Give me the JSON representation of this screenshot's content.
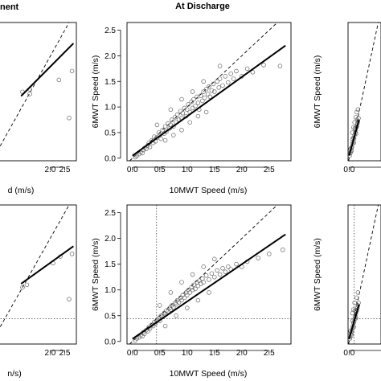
{
  "figure": {
    "titles": {
      "left": "nent",
      "center": "At Discharge"
    }
  },
  "chart_data": [
    {
      "id": "top-left",
      "type": "scatter",
      "xlabel": "d (m/s)",
      "ylabel": "",
      "xlim": [
        0,
        2.9
      ],
      "ylim": [
        0,
        2.65
      ],
      "xticks": [
        "2.0",
        "2.5"
      ],
      "yticks": [],
      "identity_line": true,
      "fit_line": [
        [
          1.0,
          1.24
        ],
        [
          2.8,
          2.25
        ]
      ],
      "points": [
        [
          1.05,
          1.32
        ],
        [
          1.3,
          1.28
        ],
        [
          1.3,
          1.37
        ],
        [
          2.3,
          1.55
        ],
        [
          2.65,
          0.82
        ],
        [
          2.75,
          1.72
        ]
      ]
    },
    {
      "id": "top-center",
      "type": "scatter",
      "title": "At Discharge",
      "xlabel": "10MWT Speed (m/s)",
      "ylabel": "6MWT Speed (m/s)",
      "xlim": [
        -0.1,
        2.9
      ],
      "ylim": [
        -0.05,
        2.65
      ],
      "xticks": [
        "0.0",
        "0.5",
        "1.0",
        "1.5",
        "2.0",
        "2.5"
      ],
      "yticks": [
        "0.0",
        "0.5",
        "1.0",
        "1.5",
        "2.0",
        "2.5"
      ],
      "identity_line": true,
      "fit_line": [
        [
          0.0,
          0.05
        ],
        [
          2.8,
          2.2
        ]
      ],
      "points": [
        [
          0.05,
          0.02
        ],
        [
          0.08,
          0.05
        ],
        [
          0.12,
          0.08
        ],
        [
          0.15,
          0.12
        ],
        [
          0.18,
          0.1
        ],
        [
          0.2,
          0.16
        ],
        [
          0.22,
          0.2
        ],
        [
          0.25,
          0.18
        ],
        [
          0.28,
          0.25
        ],
        [
          0.3,
          0.3
        ],
        [
          0.32,
          0.22
        ],
        [
          0.35,
          0.35
        ],
        [
          0.38,
          0.3
        ],
        [
          0.4,
          0.42
        ],
        [
          0.42,
          0.33
        ],
        [
          0.45,
          0.4
        ],
        [
          0.48,
          0.5
        ],
        [
          0.5,
          0.45
        ],
        [
          0.52,
          0.38
        ],
        [
          0.55,
          0.55
        ],
        [
          0.58,
          0.48
        ],
        [
          0.6,
          0.62
        ],
        [
          0.62,
          0.52
        ],
        [
          0.65,
          0.68
        ],
        [
          0.68,
          0.58
        ],
        [
          0.7,
          0.65
        ],
        [
          0.72,
          0.75
        ],
        [
          0.75,
          0.62
        ],
        [
          0.78,
          0.8
        ],
        [
          0.8,
          0.7
        ],
        [
          0.82,
          0.85
        ],
        [
          0.85,
          0.75
        ],
        [
          0.88,
          0.92
        ],
        [
          0.9,
          0.78
        ],
        [
          0.92,
          0.88
        ],
        [
          0.95,
          0.98
        ],
        [
          0.98,
          0.82
        ],
        [
          1.0,
          0.95
        ],
        [
          1.02,
          1.05
        ],
        [
          1.05,
          0.9
        ],
        [
          1.08,
          1.1
        ],
        [
          1.1,
          0.98
        ],
        [
          1.12,
          1.15
        ],
        [
          1.15,
          1.02
        ],
        [
          1.18,
          1.2
        ],
        [
          1.2,
          1.08
        ],
        [
          1.22,
          0.95
        ],
        [
          1.25,
          1.22
        ],
        [
          1.28,
          1.12
        ],
        [
          1.3,
          1.3
        ],
        [
          1.32,
          1.18
        ],
        [
          1.35,
          1.35
        ],
        [
          1.38,
          1.25
        ],
        [
          1.4,
          1.4
        ],
        [
          1.42,
          1.2
        ],
        [
          1.45,
          1.32
        ],
        [
          1.48,
          1.45
        ],
        [
          1.5,
          1.3
        ],
        [
          1.55,
          1.5
        ],
        [
          1.58,
          1.38
        ],
        [
          1.6,
          1.55
        ],
        [
          1.65,
          1.42
        ],
        [
          1.7,
          1.6
        ],
        [
          1.75,
          1.48
        ],
        [
          1.8,
          1.65
        ],
        [
          1.85,
          1.55
        ],
        [
          1.9,
          1.7
        ],
        [
          2.0,
          1.6
        ],
        [
          2.1,
          1.75
        ],
        [
          2.2,
          1.68
        ],
        [
          2.4,
          1.82
        ],
        [
          2.7,
          1.8
        ],
        [
          0.6,
          0.35
        ],
        [
          0.75,
          0.45
        ],
        [
          0.9,
          0.55
        ],
        [
          1.05,
          0.7
        ],
        [
          1.2,
          0.82
        ],
        [
          1.35,
          0.9
        ],
        [
          0.45,
          0.65
        ],
        [
          0.7,
          0.95
        ],
        [
          0.9,
          1.15
        ],
        [
          1.1,
          1.3
        ],
        [
          1.3,
          1.5
        ],
        [
          1.6,
          1.8
        ]
      ]
    },
    {
      "id": "top-right",
      "type": "scatter",
      "xlabel": "",
      "ylabel": "6MWT Speed (m/s)",
      "xlim": [
        -0.1,
        2.9
      ],
      "ylim": [
        -0.05,
        2.65
      ],
      "xticks": [
        "0.0"
      ],
      "yticks": [],
      "identity_line": true,
      "fit_line": [
        [
          0.0,
          0.05
        ],
        [
          0.9,
          0.75
        ]
      ],
      "points": [
        [
          0.05,
          0.05
        ],
        [
          0.1,
          0.1
        ],
        [
          0.15,
          0.12
        ],
        [
          0.2,
          0.2
        ],
        [
          0.25,
          0.22
        ],
        [
          0.3,
          0.28
        ],
        [
          0.35,
          0.32
        ],
        [
          0.4,
          0.4
        ],
        [
          0.45,
          0.38
        ],
        [
          0.5,
          0.45
        ],
        [
          0.55,
          0.5
        ],
        [
          0.6,
          0.55
        ],
        [
          0.65,
          0.6
        ],
        [
          0.7,
          0.62
        ],
        [
          0.75,
          0.68
        ],
        [
          0.8,
          0.72
        ],
        [
          0.85,
          0.78
        ],
        [
          0.12,
          0.18
        ],
        [
          0.22,
          0.15
        ],
        [
          0.32,
          0.38
        ],
        [
          0.42,
          0.3
        ],
        [
          0.52,
          0.58
        ],
        [
          0.62,
          0.48
        ],
        [
          0.72,
          0.75
        ],
        [
          0.3,
          0.5
        ],
        [
          0.5,
          0.7
        ],
        [
          0.6,
          0.8
        ],
        [
          0.4,
          0.6
        ],
        [
          0.7,
          0.9
        ],
        [
          0.8,
          0.95
        ]
      ]
    },
    {
      "id": "bottom-left",
      "type": "scatter",
      "xlabel": "n/s)",
      "ylabel": "",
      "xlim": [
        0,
        2.9
      ],
      "ylim": [
        -0.05,
        2.65
      ],
      "xticks": [
        "2.0",
        "2.5"
      ],
      "yticks": [],
      "identity_line": true,
      "hline": 0.44,
      "fit_line": [
        [
          1.0,
          1.12
        ],
        [
          2.8,
          1.85
        ]
      ],
      "points": [
        [
          1.05,
          1.05
        ],
        [
          1.2,
          1.1
        ],
        [
          2.1,
          1.52
        ],
        [
          2.35,
          1.65
        ],
        [
          2.65,
          0.82
        ],
        [
          2.75,
          1.7
        ]
      ]
    },
    {
      "id": "bottom-center",
      "type": "scatter",
      "xlabel": "10MWT Speed (m/s)",
      "ylabel": "6MWT Speed (m/s)",
      "xlim": [
        -0.1,
        2.9
      ],
      "ylim": [
        -0.05,
        2.65
      ],
      "xticks": [
        "0.0",
        "0.5",
        "1.0",
        "1.5",
        "2.0",
        "2.5"
      ],
      "yticks": [
        "0.0",
        "0.5",
        "1.0",
        "1.5",
        "2.0",
        "2.5"
      ],
      "identity_line": true,
      "hline": 0.44,
      "vline": 0.44,
      "fit_line": [
        [
          0.0,
          0.05
        ],
        [
          2.8,
          2.08
        ]
      ],
      "points": [
        [
          0.05,
          0.02
        ],
        [
          0.08,
          0.06
        ],
        [
          0.12,
          0.08
        ],
        [
          0.15,
          0.12
        ],
        [
          0.18,
          0.1
        ],
        [
          0.2,
          0.18
        ],
        [
          0.22,
          0.15
        ],
        [
          0.25,
          0.22
        ],
        [
          0.28,
          0.2
        ],
        [
          0.3,
          0.28
        ],
        [
          0.32,
          0.25
        ],
        [
          0.35,
          0.32
        ],
        [
          0.38,
          0.3
        ],
        [
          0.4,
          0.38
        ],
        [
          0.42,
          0.35
        ],
        [
          0.45,
          0.42
        ],
        [
          0.48,
          0.45
        ],
        [
          0.5,
          0.4
        ],
        [
          0.52,
          0.5
        ],
        [
          0.55,
          0.48
        ],
        [
          0.58,
          0.55
        ],
        [
          0.6,
          0.52
        ],
        [
          0.62,
          0.6
        ],
        [
          0.65,
          0.58
        ],
        [
          0.68,
          0.65
        ],
        [
          0.7,
          0.62
        ],
        [
          0.72,
          0.7
        ],
        [
          0.75,
          0.66
        ],
        [
          0.78,
          0.75
        ],
        [
          0.8,
          0.72
        ],
        [
          0.82,
          0.8
        ],
        [
          0.85,
          0.76
        ],
        [
          0.88,
          0.85
        ],
        [
          0.9,
          0.8
        ],
        [
          0.92,
          0.9
        ],
        [
          0.95,
          0.85
        ],
        [
          0.98,
          0.95
        ],
        [
          1.0,
          0.9
        ],
        [
          1.02,
          1.0
        ],
        [
          1.05,
          0.95
        ],
        [
          1.08,
          1.05
        ],
        [
          1.1,
          1.0
        ],
        [
          1.12,
          1.1
        ],
        [
          1.15,
          1.02
        ],
        [
          1.18,
          1.15
        ],
        [
          1.2,
          1.08
        ],
        [
          1.22,
          1.18
        ],
        [
          1.25,
          1.12
        ],
        [
          1.28,
          1.22
        ],
        [
          1.3,
          1.15
        ],
        [
          1.35,
          1.28
        ],
        [
          1.4,
          1.2
        ],
        [
          1.45,
          1.32
        ],
        [
          1.5,
          1.25
        ],
        [
          1.55,
          1.38
        ],
        [
          1.6,
          1.3
        ],
        [
          1.65,
          1.42
        ],
        [
          1.7,
          1.35
        ],
        [
          1.75,
          1.45
        ],
        [
          1.8,
          1.4
        ],
        [
          1.9,
          1.5
        ],
        [
          2.0,
          1.45
        ],
        [
          2.1,
          1.55
        ],
        [
          2.3,
          1.62
        ],
        [
          2.5,
          1.7
        ],
        [
          2.75,
          1.78
        ],
        [
          0.6,
          0.3
        ],
        [
          0.8,
          0.5
        ],
        [
          1.0,
          0.65
        ],
        [
          1.2,
          0.8
        ],
        [
          1.4,
          0.95
        ],
        [
          0.5,
          0.7
        ],
        [
          0.7,
          0.95
        ],
        [
          0.9,
          1.15
        ],
        [
          1.1,
          1.3
        ],
        [
          1.3,
          1.45
        ],
        [
          1.5,
          1.6
        ]
      ]
    },
    {
      "id": "bottom-right",
      "type": "scatter",
      "xlabel": "",
      "ylabel": "6MWT Speed (m/s)",
      "xlim": [
        -0.1,
        2.9
      ],
      "ylim": [
        -0.05,
        2.65
      ],
      "xticks": [
        "0.0"
      ],
      "yticks": [],
      "identity_line": true,
      "hline": 0.44,
      "vline": 0.44,
      "fit_line": [
        [
          0.0,
          0.05
        ],
        [
          0.9,
          0.72
        ]
      ],
      "points": [
        [
          0.05,
          0.05
        ],
        [
          0.1,
          0.08
        ],
        [
          0.15,
          0.14
        ],
        [
          0.2,
          0.18
        ],
        [
          0.25,
          0.22
        ],
        [
          0.3,
          0.26
        ],
        [
          0.35,
          0.3
        ],
        [
          0.4,
          0.36
        ],
        [
          0.45,
          0.38
        ],
        [
          0.5,
          0.44
        ],
        [
          0.55,
          0.48
        ],
        [
          0.6,
          0.52
        ],
        [
          0.65,
          0.58
        ],
        [
          0.7,
          0.6
        ],
        [
          0.75,
          0.65
        ],
        [
          0.8,
          0.7
        ],
        [
          0.85,
          0.75
        ],
        [
          0.12,
          0.2
        ],
        [
          0.22,
          0.12
        ],
        [
          0.32,
          0.4
        ],
        [
          0.42,
          0.28
        ],
        [
          0.52,
          0.6
        ],
        [
          0.62,
          0.45
        ],
        [
          0.3,
          0.55
        ],
        [
          0.5,
          0.75
        ],
        [
          0.4,
          0.62
        ],
        [
          0.7,
          0.85
        ],
        [
          0.8,
          0.95
        ]
      ]
    }
  ]
}
